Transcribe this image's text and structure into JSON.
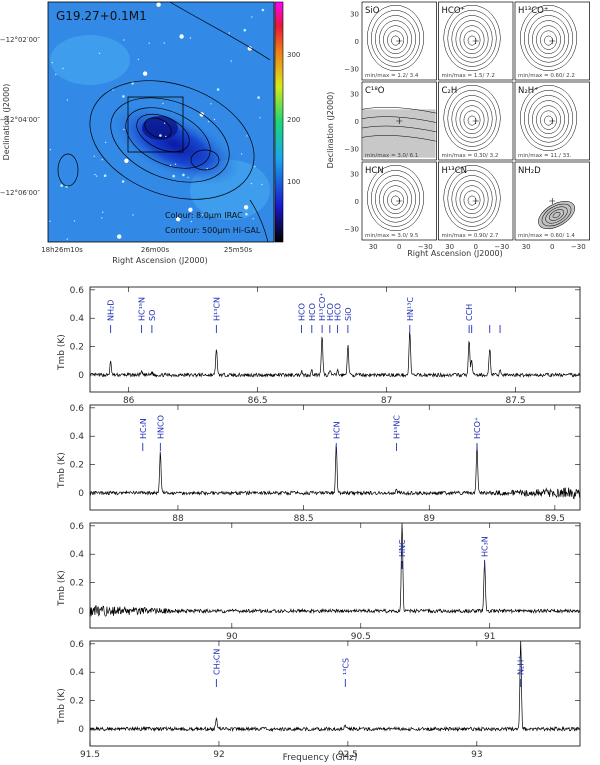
{
  "colors": {
    "spectrum": "#000000",
    "molecule_label": "#1f2fb8",
    "contour": "#000000",
    "map_bg": "#2f7fe0"
  },
  "image_panel": {
    "title": "G19.27+0.1M1",
    "xlabel": "Right Ascension (J2000)",
    "ylabel": "Declination (J2000)",
    "xticks": [
      "18h26m10s",
      "26m00s",
      "25m50s"
    ],
    "yticks": [
      "−12°02′00″",
      "−12°04′00″",
      "−12°06′00″"
    ],
    "colorbar_ticks": [
      "300",
      "200",
      "100"
    ],
    "legend_colour": "Colour: 8.0μm IRAC",
    "legend_contour": "Contour: 500μm Hi-GAL"
  },
  "grid": {
    "xlabel": "Right Ascension (J2000)",
    "ylabel": "Declination (J2000)",
    "xticks": [
      "30",
      "0",
      "−30"
    ],
    "yticks": [
      "30",
      "0",
      "−30"
    ],
    "panels": [
      {
        "name": "SiO",
        "info": "min/max = 1.2/ 3.4"
      },
      {
        "name": "HCO⁺",
        "info": "min/max = 1.5/ 7.2"
      },
      {
        "name": "H¹³CO⁺",
        "info": "min/max = 0.60/ 2.2"
      },
      {
        "name": "C¹⁸O",
        "info": "min/max = 3.0/ 6.1"
      },
      {
        "name": "C₂H",
        "info": "min/max = 0.30/ 3.2"
      },
      {
        "name": "N₂H⁺",
        "info": "min/max = 11./ 33."
      },
      {
        "name": "HCN",
        "info": "min/max = 3.0/ 9.5"
      },
      {
        "name": "H¹³CN",
        "info": "min/max = 0.90/ 2.7"
      },
      {
        "name": "NH₂D",
        "info": "min/max = 0.60/ 1.4"
      }
    ]
  },
  "chart_data": {
    "type": "line",
    "xlabel": "Frequency (GHz)",
    "ylabel": "Tmb (K)",
    "ylim": [
      -0.12,
      0.62
    ],
    "yticks": [
      0,
      0.2,
      0.4,
      0.6
    ],
    "panels": [
      {
        "xlim": [
          85.85,
          87.75
        ],
        "xticks": [
          86,
          86.5,
          87,
          87.5
        ],
        "lines": [
          {
            "freq": 85.93,
            "height": 0.09,
            "label": "NH₂D"
          },
          {
            "freq": 86.05,
            "height": 0.02,
            "label": "HC¹⁵N"
          },
          {
            "freq": 86.09,
            "height": 0.02,
            "label": "SO"
          },
          {
            "freq": 86.34,
            "height": 0.19,
            "label": "H¹³CN"
          },
          {
            "freq": 86.67,
            "height": 0.03,
            "label": "HCO"
          },
          {
            "freq": 86.71,
            "height": 0.03,
            "label": "HCO"
          },
          {
            "freq": 86.75,
            "height": 0.27,
            "label": "H¹³CO⁺"
          },
          {
            "freq": 86.78,
            "height": 0.03,
            "label": "HCO"
          },
          {
            "freq": 86.81,
            "height": 0.03,
            "label": "HCO"
          },
          {
            "freq": 86.85,
            "height": 0.21,
            "label": "SiO"
          },
          {
            "freq": 87.09,
            "height": 0.32,
            "label": "HN¹³C"
          },
          {
            "freq": 87.32,
            "height": 0.25,
            "label": "CCH"
          },
          {
            "freq": 87.33,
            "height": 0.1,
            "label": ""
          },
          {
            "freq": 87.4,
            "height": 0.19,
            "label": ""
          },
          {
            "freq": 87.44,
            "height": 0.04,
            "label": ""
          }
        ]
      },
      {
        "xlim": [
          87.65,
          89.6
        ],
        "xticks": [
          88,
          88.5,
          89,
          89.5
        ],
        "lines": [
          {
            "freq": 87.86,
            "height": 0.01,
            "label": "HC₅N"
          },
          {
            "freq": 87.93,
            "height": 0.29,
            "label": "HNCO"
          },
          {
            "freq": 88.63,
            "height": 0.35,
            "label": "HCN"
          },
          {
            "freq": 88.87,
            "height": 0.02,
            "label": "H¹⁵NC"
          },
          {
            "freq": 89.19,
            "height": 0.35,
            "label": "HCO⁺"
          }
        ]
      },
      {
        "xlim": [
          89.45,
          91.35
        ],
        "xticks": [
          90,
          90.5,
          91
        ],
        "lines": [
          {
            "freq": 90.66,
            "height": 0.64,
            "label": "HNC"
          },
          {
            "freq": 90.98,
            "height": 0.36,
            "label": "HC₃N"
          }
        ]
      },
      {
        "xlim": [
          91.5,
          93.4
        ],
        "xticks": [
          91.5,
          92,
          92.5,
          93
        ],
        "lines": [
          {
            "freq": 91.99,
            "height": 0.07,
            "label": "CH₃CN"
          },
          {
            "freq": 92.49,
            "height": 0.03,
            "label": "¹³CS"
          },
          {
            "freq": 93.17,
            "height": 0.64,
            "label": "N₂H⁺"
          }
        ]
      }
    ]
  }
}
